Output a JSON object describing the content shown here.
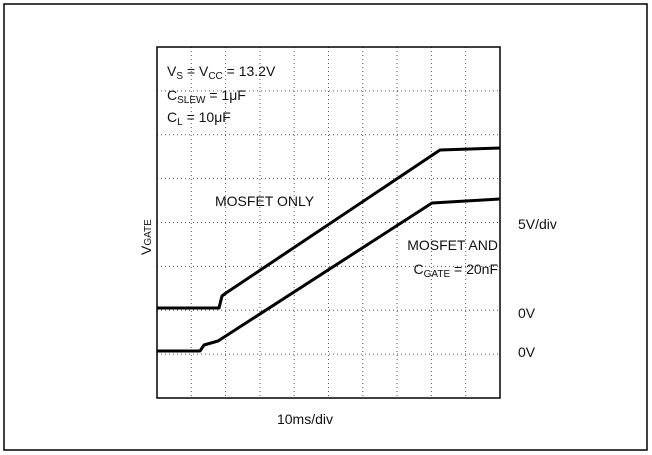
{
  "annotations": {
    "vs": [
      "V",
      "S",
      " = V",
      "CC",
      " = 13.2V"
    ],
    "cslew": [
      "C",
      "SLEW",
      " = 1μF"
    ],
    "cl": [
      "C",
      "L",
      " = 10μF"
    ],
    "mosfet_only": "MOSFET ONLY",
    "mosfet_and": "MOSFET AND",
    "cgate": [
      "C",
      "GATE",
      " = 20nF"
    ]
  },
  "y_axis": {
    "label": [
      "V",
      "GATE"
    ],
    "scale": "5V/div",
    "zero_1": "0V",
    "zero_2": "0V"
  },
  "x_axis": {
    "scale": "10ms/div"
  }
}
